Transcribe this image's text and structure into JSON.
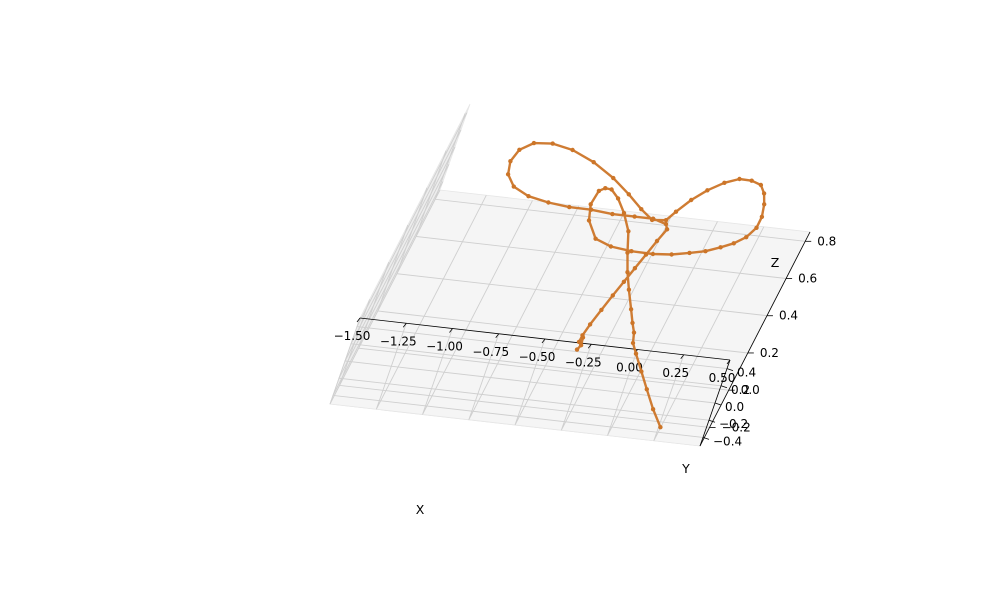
{
  "chart_data": {
    "type": "line",
    "projection": "3d",
    "title": "",
    "xlabel": "X",
    "ylabel": "Y",
    "zlabel": "Z",
    "xlim": [
      -1.5,
      0.5
    ],
    "ylim": [
      -0.5,
      0.5
    ],
    "zlim": [
      -0.3,
      0.85
    ],
    "x_ticks": [
      "−1.50",
      "−1.25",
      "−1.00",
      "−0.75",
      "−0.50",
      "−0.25",
      "0.00",
      "0.25",
      "0.50"
    ],
    "y_ticks": [
      "−0.4",
      "−0.2",
      "0.0",
      "0.2",
      "0.4"
    ],
    "z_ticks": [
      "−0.2",
      "0.0",
      "0.2",
      "0.4",
      "0.6",
      "0.8"
    ],
    "grid": true,
    "series_color": "#cc7528",
    "series": [
      {
        "name": "",
        "points": [
          [
            0.26,
            -0.34,
            -0.3
          ],
          [
            0.18,
            -0.28,
            -0.24
          ],
          [
            0.1,
            -0.22,
            -0.17
          ],
          [
            0.03,
            -0.16,
            -0.11
          ],
          [
            -0.04,
            -0.1,
            -0.05
          ],
          [
            -0.08,
            -0.05,
            -0.02
          ],
          [
            -0.1,
            -0.02,
            0.02
          ],
          [
            -0.13,
            0.02,
            0.05
          ],
          [
            -0.17,
            0.06,
            0.1
          ],
          [
            -0.23,
            0.1,
            0.18
          ],
          [
            -0.28,
            0.14,
            0.25
          ],
          [
            -0.33,
            0.16,
            0.34
          ],
          [
            -0.38,
            0.18,
            0.44
          ],
          [
            -0.45,
            0.18,
            0.53
          ],
          [
            -0.52,
            0.16,
            0.61
          ],
          [
            -0.58,
            0.12,
            0.67
          ],
          [
            -0.62,
            0.06,
            0.7
          ],
          [
            -0.65,
            0.0,
            0.71
          ],
          [
            -0.66,
            -0.05,
            0.66
          ],
          [
            -0.63,
            -0.1,
            0.6
          ],
          [
            -0.55,
            -0.12,
            0.52
          ],
          [
            -0.45,
            -0.1,
            0.48
          ],
          [
            -0.33,
            -0.06,
            0.45
          ],
          [
            -0.21,
            -0.02,
            0.43
          ],
          [
            -0.11,
            0.02,
            0.42
          ],
          [
            -0.02,
            0.06,
            0.42
          ],
          [
            0.06,
            0.1,
            0.42
          ],
          [
            0.13,
            0.14,
            0.43
          ],
          [
            0.19,
            0.18,
            0.44
          ],
          [
            0.24,
            0.22,
            0.46
          ],
          [
            0.27,
            0.25,
            0.5
          ],
          [
            0.27,
            0.27,
            0.55
          ],
          [
            0.25,
            0.28,
            0.61
          ],
          [
            0.22,
            0.27,
            0.67
          ],
          [
            0.18,
            0.25,
            0.72
          ],
          [
            0.12,
            0.22,
            0.75
          ],
          [
            0.05,
            0.18,
            0.77
          ],
          [
            -0.02,
            0.14,
            0.76
          ],
          [
            -0.09,
            0.1,
            0.73
          ],
          [
            -0.15,
            0.06,
            0.69
          ],
          [
            -0.2,
            0.02,
            0.64
          ],
          [
            -0.23,
            0.0,
            0.6
          ],
          [
            -0.3,
            0.03,
            0.58
          ],
          [
            -0.38,
            0.07,
            0.61
          ],
          [
            -0.48,
            0.11,
            0.66
          ],
          [
            -0.6,
            0.14,
            0.72
          ],
          [
            -0.74,
            0.16,
            0.78
          ],
          [
            -0.88,
            0.16,
            0.83
          ],
          [
            -1.0,
            0.14,
            0.86
          ],
          [
            -1.1,
            0.1,
            0.87
          ],
          [
            -1.16,
            0.05,
            0.85
          ],
          [
            -1.18,
            0.0,
            0.81
          ],
          [
            -1.16,
            -0.04,
            0.76
          ],
          [
            -1.1,
            -0.06,
            0.71
          ],
          [
            -1.0,
            -0.06,
            0.67
          ],
          [
            -0.88,
            -0.04,
            0.64
          ],
          [
            -0.76,
            -0.02,
            0.62
          ],
          [
            -0.64,
            0.0,
            0.61
          ],
          [
            -0.52,
            0.0,
            0.6
          ],
          [
            -0.4,
            0.0,
            0.6
          ],
          [
            -0.3,
            0.0,
            0.6
          ],
          [
            -0.22,
            0.0,
            0.58
          ],
          [
            -0.2,
            0.01,
            0.55
          ],
          [
            -0.22,
            0.02,
            0.48
          ],
          [
            -0.24,
            0.03,
            0.4
          ],
          [
            -0.26,
            0.04,
            0.32
          ],
          [
            -0.28,
            0.05,
            0.24
          ],
          [
            -0.3,
            0.06,
            0.16
          ],
          [
            -0.32,
            0.06,
            0.08
          ],
          [
            -0.34,
            0.06,
            0.0
          ],
          [
            -0.35,
            0.06,
            -0.06
          ],
          [
            -0.35,
            0.07,
            -0.1
          ],
          [
            -0.34,
            0.08,
            -0.08
          ],
          [
            -0.33,
            0.08,
            -0.12
          ],
          [
            -0.34,
            0.07,
            -0.14
          ]
        ]
      }
    ]
  }
}
